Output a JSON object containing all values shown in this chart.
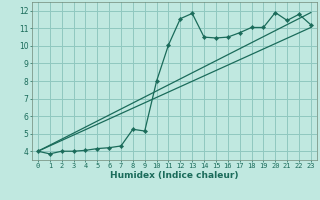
{
  "xlabel": "Humidex (Indice chaleur)",
  "ylabel": "",
  "bg_color": "#c0e8e0",
  "grid_color": "#90c8c0",
  "line_color": "#1a6b5a",
  "xlim": [
    -0.5,
    23.5
  ],
  "ylim": [
    3.5,
    12.5
  ],
  "xticks": [
    0,
    1,
    2,
    3,
    4,
    5,
    6,
    7,
    8,
    9,
    10,
    11,
    12,
    13,
    14,
    15,
    16,
    17,
    18,
    19,
    20,
    21,
    22,
    23
  ],
  "yticks": [
    4,
    5,
    6,
    7,
    8,
    9,
    10,
    11,
    12
  ],
  "data_x": [
    0,
    1,
    2,
    3,
    4,
    5,
    6,
    7,
    8,
    9,
    10,
    11,
    12,
    13,
    14,
    15,
    16,
    17,
    18,
    19,
    20,
    21,
    22,
    23
  ],
  "data_y": [
    4.0,
    3.85,
    4.0,
    4.0,
    4.05,
    4.15,
    4.2,
    4.3,
    5.25,
    5.15,
    8.0,
    10.05,
    11.55,
    11.85,
    10.5,
    10.45,
    10.5,
    10.75,
    11.05,
    11.05,
    11.9,
    11.45,
    11.8,
    11.2
  ],
  "line1_x": [
    0,
    23
  ],
  "line1_y": [
    4.0,
    11.05
  ],
  "line2_x": [
    0,
    23
  ],
  "line2_y": [
    4.0,
    11.9
  ],
  "marker": "D",
  "markersize": 2.2,
  "linewidth": 0.9
}
